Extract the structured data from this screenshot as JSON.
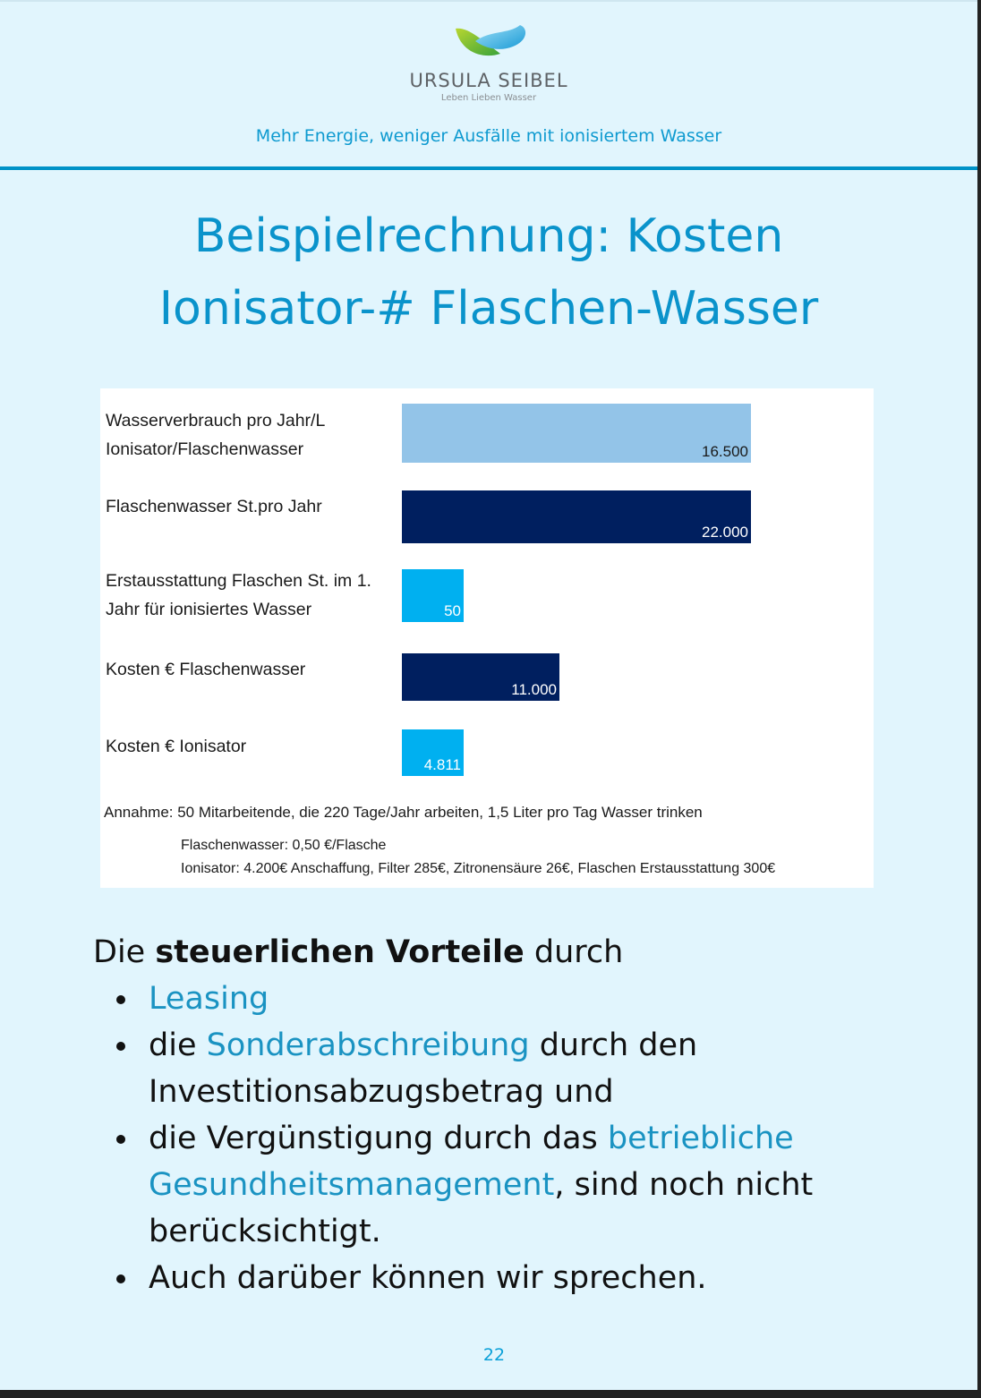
{
  "header": {
    "brand_name": "URSULA SEIBEL",
    "brand_tagline": "Leben Lieben Wasser",
    "logo_icon": "leaf-water-drop-logo",
    "subtitle": "Mehr Energie, weniger Ausfälle mit ionisiertem Wasser"
  },
  "title": {
    "line1": "Beispielrechnung: Kosten",
    "line2": "Ionisator-# Flaschen-Wasser"
  },
  "chart_data": {
    "type": "bar",
    "orientation": "horizontal",
    "title": "",
    "xlabel": "",
    "ylabel": "",
    "grid": false,
    "legend": "none",
    "categories": [
      "Wasserverbrauch pro Jahr/L Ionisator/Flaschenwasser",
      "Flaschenwasser St.pro Jahr",
      "Erstausstattung Flaschen St. im 1. Jahr für ionisiertes Wasser",
      "Kosten € Flaschenwasser",
      "Kosten € Ionisator"
    ],
    "category_lines": [
      [
        "Wasserverbrauch pro Jahr/L",
        "Ionisator/Flaschenwasser"
      ],
      [
        "Flaschenwasser St.pro Jahr"
      ],
      [
        "Erstausstattung Flaschen St. im 1.",
        "Jahr für ionisiertes Wasser"
      ],
      [
        "Kosten € Flaschenwasser"
      ],
      [
        "Kosten € Ionisator"
      ]
    ],
    "values": [
      16500,
      22000,
      50,
      11000,
      4811
    ],
    "value_labels": [
      "16.500",
      "22.000",
      "50",
      "11.000",
      "4.811"
    ],
    "bar_colors": [
      "#93c4e8",
      "#001f5f",
      "#00b0f0",
      "#001f5f",
      "#00b0f0"
    ],
    "label_colors": [
      "#1a1a1a",
      "#ffffff",
      "#ffffff",
      "#ffffff",
      "#ffffff"
    ],
    "notes": {
      "assumption": "Annahme: 50 Mitarbeitende, die 220 Tage/Jahr arbeiten, 1,5 Liter pro Tag Wasser trinken",
      "bottled": "Flaschenwasser: 0,50 €/Flasche",
      "ionizer": "Ionisator: 4.200€ Anschaffung, Filter 285€, Zitronensäure 26€, Flaschen Erstausstattung 300€"
    }
  },
  "body": {
    "intro_prefix": "Die ",
    "intro_bold": "steuerlichen Vorteile",
    "intro_suffix": " durch",
    "bullets": [
      {
        "highlight": "Leasing"
      },
      {
        "pre": "die ",
        "highlight": "Sonderabschreibung",
        "post": " durch den Investitionsabzugsbetrag und"
      },
      {
        "pre": "die Vergünstigung durch das ",
        "highlight": "betriebliche Gesundheitsmanagement",
        "post": ", sind noch nicht berücksichtigt."
      },
      {
        "pre": "Auch darüber können wir sprechen."
      }
    ],
    "highlight_color": "#1a93c2"
  },
  "footer": {
    "page_number": "22"
  }
}
